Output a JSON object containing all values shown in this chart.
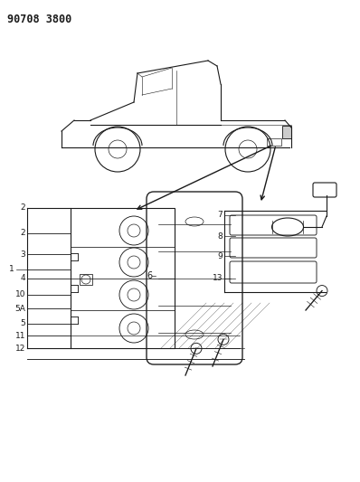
{
  "title": "90708 3800",
  "bg_color": "#ffffff",
  "line_color": "#1a1a1a",
  "title_fontsize": 8.5,
  "label_fontsize": 6.5,
  "figsize": [
    3.98,
    5.33
  ],
  "dpi": 100
}
